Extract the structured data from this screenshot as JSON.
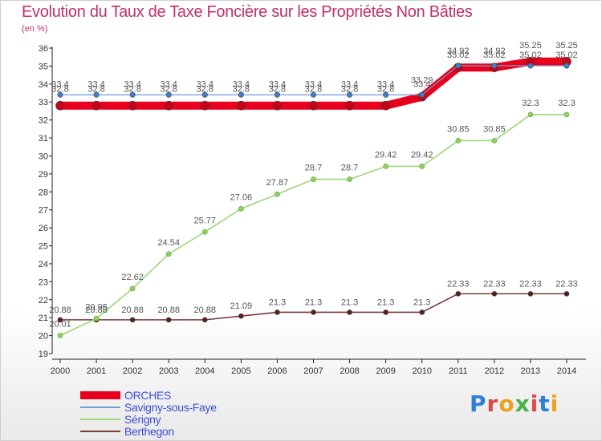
{
  "header": {
    "title": "Evolution du Taux de Taxe Foncière sur les Propriétés Non Bâties",
    "unit": "(en %)"
  },
  "logo": {
    "text": "Proxiti",
    "letter_colors": [
      "#2f7fd8",
      "#e04848",
      "#f0a020",
      "#47b347",
      "#e04848",
      "#2f7fd8",
      "#f0a020"
    ]
  },
  "chart_data": {
    "type": "line",
    "title": "Evolution du Taux de Taxe Foncière sur les Propriétés Non Bâties",
    "ylabel": "(en %)",
    "xlabel": "",
    "ylim": [
      19,
      36
    ],
    "y_ticks": [
      19,
      20,
      21,
      22,
      23,
      24,
      25,
      26,
      27,
      28,
      29,
      30,
      31,
      32,
      33,
      34,
      35,
      36
    ],
    "x": [
      "2000",
      "2001",
      "2002",
      "2003",
      "2004",
      "2005",
      "2006",
      "2007",
      "2008",
      "2009",
      "2010",
      "2011",
      "2012",
      "2013",
      "2014"
    ],
    "grid": false,
    "legend_position": "bottom-left",
    "series": [
      {
        "name": "ORCHES",
        "color": "#e8001c",
        "width": "thick",
        "values": [
          32.8,
          32.8,
          32.8,
          32.8,
          32.8,
          32.8,
          32.8,
          32.8,
          32.8,
          32.8,
          33.29,
          34.92,
          34.92,
          35.25,
          35.25
        ],
        "labels": [
          "32.8",
          "32.8",
          "32.8",
          "32.8",
          "32.8",
          "32.8",
          "32.8",
          "32.8",
          "32.8",
          "32.8",
          "33.29",
          "34.92",
          "34.92",
          "35.25",
          "35.25"
        ]
      },
      {
        "name": "Savigny-sous-Faye",
        "color": "#6f9fd0",
        "width": "thin",
        "values": [
          33.4,
          33.4,
          33.4,
          33.4,
          33.4,
          33.4,
          33.4,
          33.4,
          33.4,
          33.4,
          33.4,
          35.02,
          35.02,
          35.02,
          35.02
        ],
        "labels": [
          "33.4",
          "33.4",
          "33.4",
          "33.4",
          "33.4",
          "33.4",
          "33.4",
          "33.4",
          "33.4",
          "33.4",
          "33.4",
          "35.02",
          "35.02",
          "35.02",
          "35.02"
        ]
      },
      {
        "name": "Sérigny",
        "color": "#9ad87a",
        "width": "medium",
        "values": [
          20.01,
          20.95,
          22.62,
          24.54,
          25.77,
          27.06,
          27.87,
          28.7,
          28.7,
          29.42,
          29.42,
          30.85,
          30.85,
          32.3,
          32.3
        ],
        "labels": [
          "20.01",
          "20.95",
          "22.62",
          "24.54",
          "25.77",
          "27.06",
          "27.87",
          "28.7",
          "28.7",
          "29.42",
          "29.42",
          "30.85",
          "30.85",
          "32.3",
          "32.3"
        ]
      },
      {
        "name": "Berthegon",
        "color": "#7a3a3a",
        "width": "medium",
        "values": [
          20.88,
          20.88,
          20.88,
          20.88,
          20.88,
          21.09,
          21.3,
          21.3,
          21.3,
          21.3,
          21.3,
          22.33,
          22.33,
          22.33,
          22.33
        ],
        "labels": [
          "20.88",
          "20.88",
          "20.88",
          "20.88",
          "20.88",
          "21.09",
          "21.3",
          "21.3",
          "21.3",
          "21.3",
          "21.3",
          "22.33",
          "22.33",
          "22.33",
          "22.33"
        ]
      }
    ]
  }
}
